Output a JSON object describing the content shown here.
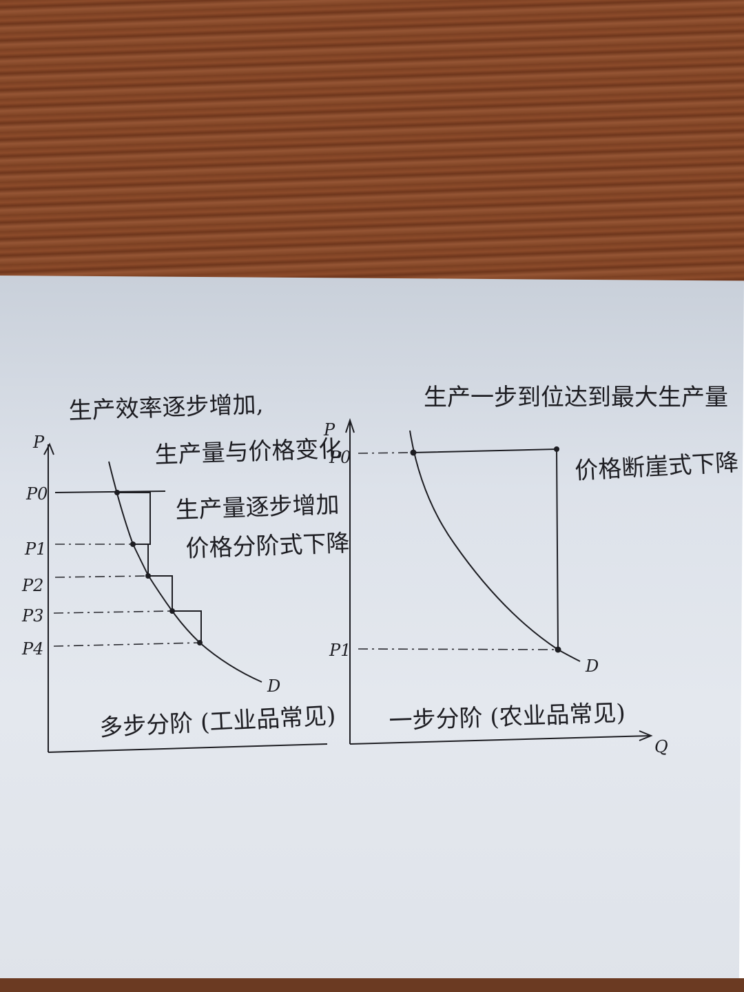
{
  "left_diagram": {
    "axis_label_y": "P",
    "price_labels": [
      "P0",
      "P1",
      "P2",
      "P3",
      "P4"
    ],
    "curve_label": "D",
    "notes": [
      "生产效率逐步增加,",
      "生产量与价格变化",
      "生产量逐步增加",
      "价格分阶式下降"
    ],
    "caption": "多步分阶 (工业品常见)"
  },
  "right_diagram": {
    "axis_label_y": "P",
    "axis_label_x": "Q",
    "price_labels": [
      "P0",
      "P1"
    ],
    "curve_label": "D",
    "notes": [
      "生产一步到位达到最大生产量",
      "价格断崖式下降"
    ],
    "caption": "一步分阶 (农业品常见)"
  },
  "colors": {
    "ink": "#1d1d22",
    "paper": "#dde2ea",
    "wood": "#7f4324"
  }
}
